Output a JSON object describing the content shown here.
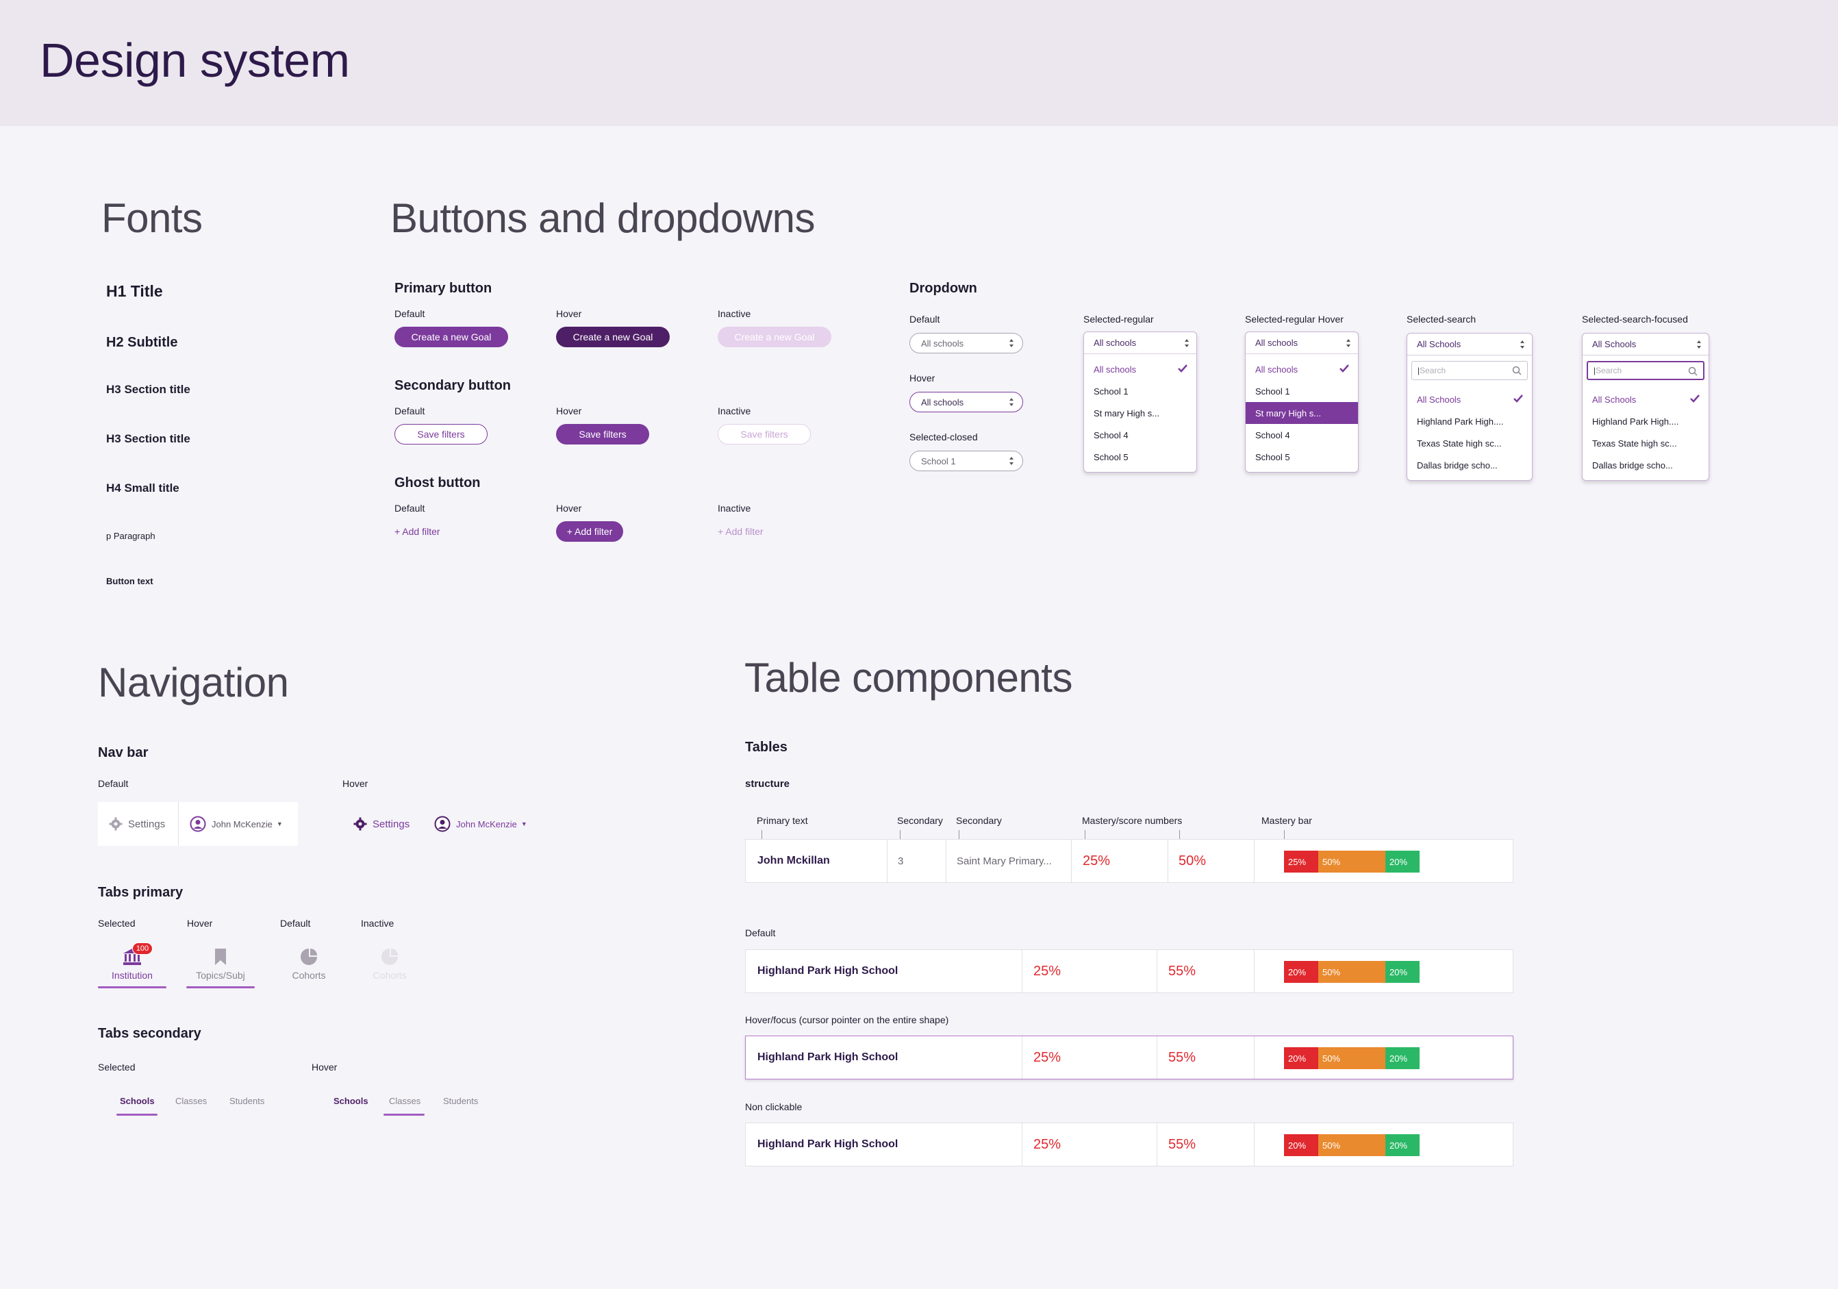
{
  "header": {
    "title": "Design system"
  },
  "fonts": {
    "title": "Fonts",
    "samples": [
      "H1 Title",
      "H2 Subtitle",
      "H3 Section title",
      "H3 Section title",
      "H4 Small title",
      "p Paragraph",
      "Button text"
    ]
  },
  "buttons": {
    "title": "Buttons and dropdowns",
    "states": {
      "default": "Default",
      "hover": "Hover",
      "inactive": "Inactive"
    },
    "primary": {
      "title": "Primary button",
      "label": "Create a new Goal"
    },
    "secondary": {
      "title": "Secondary button",
      "label": "Save filters"
    },
    "ghost": {
      "title": "Ghost button",
      "label": "+ Add filter"
    }
  },
  "dropdown": {
    "title": "Dropdown",
    "default_label": "Default",
    "hover_label": "Hover",
    "closed_label": "Selected-closed",
    "default_value": "All schools",
    "hover_value": "All schools",
    "closed_value": "School 1",
    "regular": {
      "label": "Selected-regular",
      "head": "All schools",
      "items": [
        "All schools",
        "School 1",
        "St mary High s...",
        "School 4",
        "School 5"
      ]
    },
    "regular_hover": {
      "label": "Selected-regular Hover",
      "head": "All schools",
      "items": [
        "All schools",
        "School 1",
        "St mary High s...",
        "School 4",
        "School 5"
      ]
    },
    "search": {
      "label": "Selected-search",
      "head": "All Schools",
      "placeholder": "Search",
      "items": [
        "All Schools",
        "Highland Park High....",
        "Texas State high sc...",
        "Dallas bridge scho..."
      ]
    },
    "search_focused": {
      "label": "Selected-search-focused",
      "head": "All Schools",
      "placeholder": "Search",
      "items": [
        "All Schools",
        "Highland Park High....",
        "Texas State high sc...",
        "Dallas bridge scho..."
      ]
    }
  },
  "navigation": {
    "title": "Navigation",
    "navbar": {
      "title": "Nav bar",
      "default_label": "Default",
      "hover_label": "Hover",
      "settings": "Settings",
      "user": "John McKenzie"
    },
    "tabs_primary": {
      "title": "Tabs primary",
      "state_labels": [
        "Selected",
        "Hover",
        "Default",
        "Inactive"
      ],
      "badge": "100",
      "tabs": [
        "Institution",
        "Topics/Subj",
        "Cohorts",
        "Cohorts"
      ]
    },
    "tabs_secondary": {
      "title": "Tabs secondary",
      "selected_label": "Selected",
      "hover_label": "Hover",
      "tabs": [
        "Schools",
        "Classes",
        "Students"
      ]
    }
  },
  "tables": {
    "title": "Table components",
    "subtitle": "Tables",
    "structure_label": "structure",
    "annotations": [
      "Primary text",
      "Secondary",
      "Secondary",
      "Mastery/score numbers",
      "Mastery bar"
    ],
    "structure_row": {
      "name": "John Mckillan",
      "num": "3",
      "school": "Saint Mary Primary...",
      "score1": "25%",
      "score2": "50%",
      "bar": [
        "25%",
        "50%",
        "20%"
      ]
    },
    "state_labels": [
      "Default",
      "Hover/focus (cursor pointer on the entire shape)",
      "Non clickable"
    ],
    "row": {
      "name": "Highland Park High School",
      "score1": "25%",
      "score2": "55%",
      "bar": [
        "20%",
        "50%",
        "20%"
      ]
    },
    "colors": {
      "red": "#e0282e",
      "orange": "#ea8a2e",
      "green": "#2bb866",
      "score": "#e0282e",
      "accent": "#7b3a9c"
    }
  }
}
